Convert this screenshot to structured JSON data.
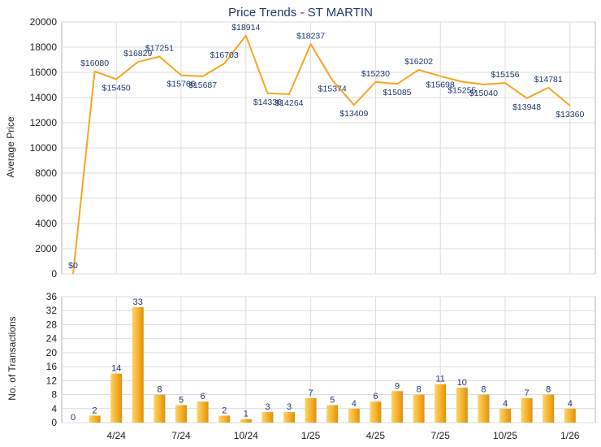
{
  "title": "Price Trends - ST MARTIN",
  "colors": {
    "line": "#f5a623",
    "bar_light": "#fcd46a",
    "bar_dark": "#e0900c",
    "grid": "#dcdcdc",
    "label": "#1f3a6e"
  },
  "chart_data": [
    {
      "type": "line",
      "ylabel": "Average Price",
      "ylim": [
        0,
        20000
      ],
      "yticks": [
        "0",
        "2000",
        "4000",
        "6000",
        "8000",
        "10000",
        "12000",
        "14000",
        "16000",
        "18000",
        "20000"
      ],
      "grid": true,
      "points": [
        0,
        16080,
        15450,
        16829,
        17251,
        15766,
        15687,
        16703,
        18914,
        14336,
        14264,
        18237,
        15374,
        13409,
        15230,
        15085,
        16202,
        15698,
        15255,
        15040,
        15156,
        13948,
        14781,
        13360
      ],
      "point_labels": [
        "$0",
        "$16080",
        "$15450",
        "$16829",
        "$17251",
        "$15766",
        "$15687",
        "$16703",
        "$18914",
        "$14336",
        "$14264",
        "$18237",
        "$15374",
        "$13409",
        "$15230",
        "$15085",
        "$16202",
        "$15698",
        "$15255",
        "$15040",
        "$15156",
        "$13948",
        "$14781",
        "$13360"
      ]
    },
    {
      "type": "bar",
      "ylabel": "No. of Transactions",
      "ylim": [
        0,
        36
      ],
      "yticks": [
        "0",
        "4",
        "8",
        "12",
        "16",
        "20",
        "24",
        "28",
        "32",
        "36"
      ],
      "grid": true,
      "values": [
        0,
        2,
        14,
        33,
        8,
        5,
        6,
        2,
        1,
        3,
        3,
        7,
        5,
        4,
        6,
        9,
        8,
        11,
        10,
        8,
        4,
        7,
        8,
        4
      ],
      "value_labels": [
        "0",
        "2",
        "14",
        "33",
        "8",
        "5",
        "6",
        "2",
        "1",
        "3",
        "3",
        "7",
        "5",
        "4",
        "6",
        "9",
        "8",
        "11",
        "10",
        "8",
        "4",
        "7",
        "8",
        "4"
      ]
    }
  ],
  "xaxis": {
    "tick_labels": [
      "4/24",
      "7/24",
      "10/24",
      "1/25",
      "4/25",
      "7/25",
      "10/25",
      "1/26"
    ],
    "tick_indices": [
      2,
      5,
      8,
      11,
      14,
      17,
      20,
      23
    ]
  }
}
